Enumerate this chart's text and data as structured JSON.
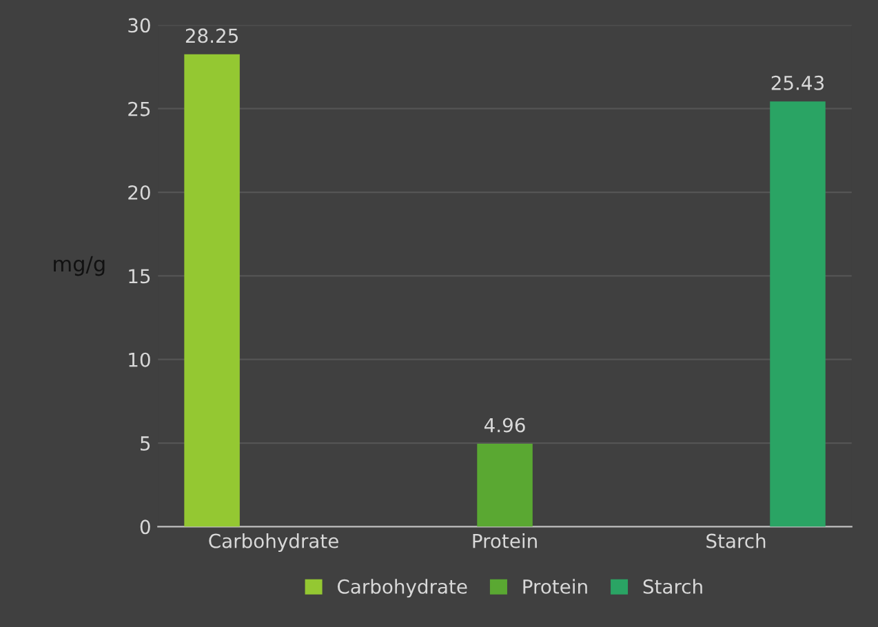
{
  "chart_data": {
    "type": "bar",
    "ylabel": "mg/g",
    "categories": [
      "Carbohydrate",
      "Protein",
      "Starch"
    ],
    "series": [
      {
        "name": "Carbohydrate",
        "color": "#94c832",
        "values": [
          28.25,
          null,
          null
        ]
      },
      {
        "name": "Protein",
        "color": "#5aa832",
        "values": [
          null,
          4.96,
          null
        ]
      },
      {
        "name": "Starch",
        "color": "#2aa464",
        "values": [
          null,
          null,
          25.43
        ]
      }
    ],
    "ylim": [
      0,
      30
    ],
    "yticks": [
      0,
      5,
      10,
      15,
      20,
      25,
      30
    ],
    "grid": "y",
    "legend": "bottom",
    "data_labels": true
  }
}
